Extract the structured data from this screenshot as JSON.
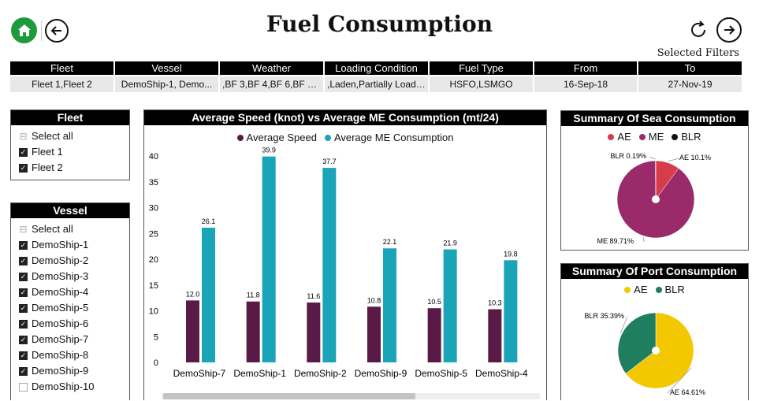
{
  "header": {
    "title": "Fuel Consumption",
    "selected_filters_label": "Selected Filters"
  },
  "filters": [
    {
      "label": "Fleet",
      "value": "Fleet 1,Fleet 2"
    },
    {
      "label": "Vessel",
      "value": "DemoShip-1, Demo..."
    },
    {
      "label": "Weather",
      "value": ",BF 3,BF 4,BF 6,BF 7,B..."
    },
    {
      "label": "Loading Condition",
      "value": ",Laden,Partially Loade..."
    },
    {
      "label": "Fuel Type",
      "value": "HSFO,LSMGO"
    },
    {
      "label": "From",
      "value": "16-Sep-18"
    },
    {
      "label": "To",
      "value": "27-Nov-19"
    }
  ],
  "fleet_slicer": {
    "title": "Fleet",
    "items": [
      {
        "label": "Select all",
        "state": "partial"
      },
      {
        "label": "Fleet 1",
        "state": "checked"
      },
      {
        "label": "Fleet 2",
        "state": "checked"
      }
    ]
  },
  "vessel_slicer": {
    "title": "Vessel",
    "items": [
      {
        "label": "Select all",
        "state": "partial"
      },
      {
        "label": "DemoShip-1",
        "state": "checked"
      },
      {
        "label": "DemoShip-2",
        "state": "checked"
      },
      {
        "label": "DemoShip-3",
        "state": "checked"
      },
      {
        "label": "DemoShip-4",
        "state": "checked"
      },
      {
        "label": "DemoShip-5",
        "state": "checked"
      },
      {
        "label": "DemoShip-6",
        "state": "checked"
      },
      {
        "label": "DemoShip-7",
        "state": "checked"
      },
      {
        "label": "DemoShip-8",
        "state": "checked"
      },
      {
        "label": "DemoShip-9",
        "state": "checked"
      },
      {
        "label": "DemoShip-10",
        "state": "unchecked"
      }
    ]
  },
  "chart_data": [
    {
      "type": "bar",
      "title": "Average Speed (knot) vs Average ME Consumption (mt/24)",
      "categories": [
        "DemoShip-7",
        "DemoShip-1",
        "DemoShip-2",
        "DemoShip-9",
        "DemoShip-5",
        "DemoShip-4"
      ],
      "series": [
        {
          "name": "Average Speed",
          "color": "#5a1a47",
          "values": [
            12.0,
            11.8,
            11.6,
            10.8,
            10.5,
            10.3
          ],
          "labels": [
            "12.0",
            "11.8",
            "11.6",
            "10.8",
            "10.5",
            "10.3"
          ]
        },
        {
          "name": "Average ME Consumption",
          "color": "#19a4b8",
          "values": [
            26.1,
            39.9,
            37.7,
            22.1,
            21.9,
            19.8
          ],
          "labels": [
            "26.1",
            "39.9",
            "37.7",
            "22.1",
            "21.9",
            "19.8"
          ]
        }
      ],
      "ylim": [
        0,
        40
      ],
      "yticks": [
        "0",
        "5",
        "10",
        "15",
        "20",
        "25",
        "30",
        "35",
        "40"
      ],
      "legend": "top-center",
      "grid": false
    },
    {
      "type": "pie",
      "title": "Summary Of Sea Consumption",
      "slices": [
        {
          "name": "AE",
          "value": 10.1,
          "label": "AE 10.1%",
          "color": "#d63c4c"
        },
        {
          "name": "ME",
          "value": 89.71,
          "label": "ME 89.71%",
          "color": "#9b2a6b"
        },
        {
          "name": "BLR",
          "value": 0.19,
          "label": "BLR 0.19%",
          "color": "#111111"
        }
      ],
      "legend": "top-center"
    },
    {
      "type": "pie",
      "title": "Summary Of Port Consumption",
      "slices": [
        {
          "name": "AE",
          "value": 64.61,
          "label": "AE 64.61%",
          "color": "#f3c800"
        },
        {
          "name": "BLR",
          "value": 35.39,
          "label": "BLR 35.39%",
          "color": "#1e7e5e"
        }
      ],
      "legend": "top-center"
    }
  ]
}
